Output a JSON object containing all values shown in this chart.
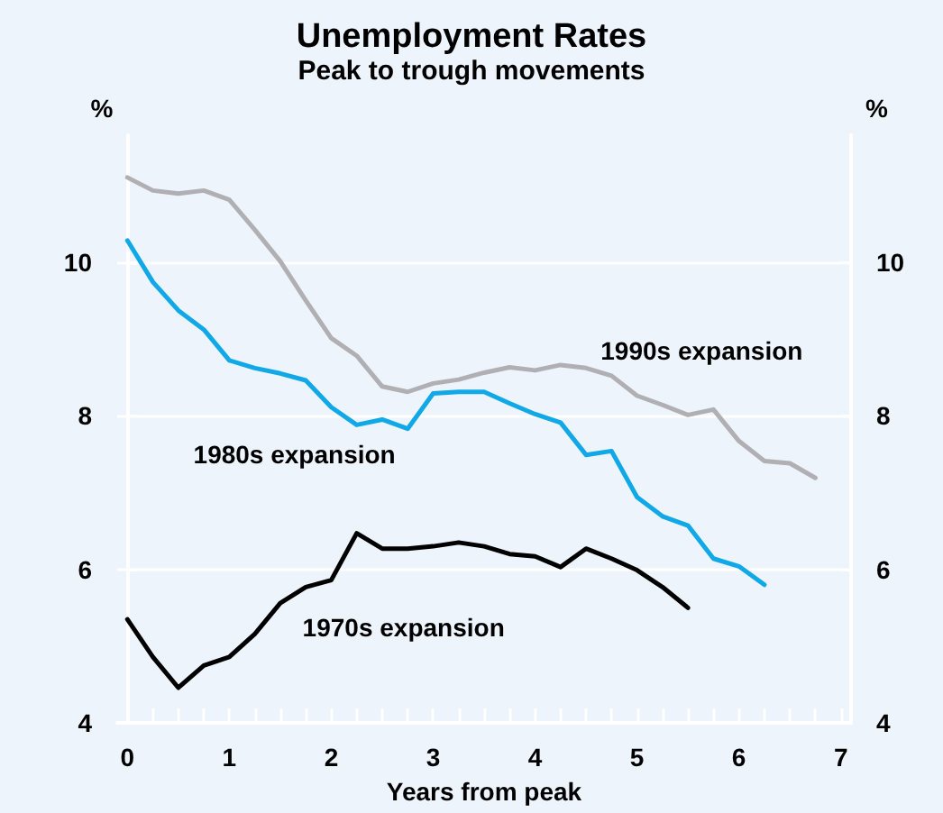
{
  "chart_data": {
    "type": "line",
    "title": "Unemployment Rates",
    "subtitle": "Peak to trough movements",
    "xlabel": "Years from peak",
    "ylabel": "%",
    "y2label": "%",
    "xlim": [
      -0.1,
      7.1
    ],
    "xticks": [
      0,
      1,
      2,
      3,
      4,
      5,
      6,
      7
    ],
    "ylim": [
      4,
      11.65
    ],
    "yticks": [
      4,
      6,
      8,
      10
    ],
    "y2lim": [
      4,
      11.65
    ],
    "y2ticks": [
      4,
      6,
      8,
      10
    ],
    "grid": "y",
    "legend": false,
    "marker": "none",
    "line_style": "solid",
    "x": [
      0,
      0.25,
      0.5,
      0.75,
      1,
      1.25,
      1.5,
      1.75,
      2,
      2.25,
      2.5,
      2.75,
      3,
      3.25,
      3.5,
      3.75,
      4,
      4.25,
      4.5,
      4.75,
      5,
      5.25,
      5.5,
      5.75,
      6,
      6.25,
      6.5,
      6.75
    ],
    "series": [
      {
        "name": "1990s expansion",
        "color": "#b0b0b4",
        "values": [
          11.1,
          10.93,
          10.89,
          10.93,
          10.81,
          10.42,
          10.01,
          9.5,
          9.01,
          8.78,
          8.38,
          8.31,
          8.42,
          8.47,
          8.56,
          8.63,
          8.59,
          8.66,
          8.62,
          8.52,
          8.26,
          8.14,
          8.01,
          8.08,
          7.67,
          7.41,
          7.38,
          7.19
        ]
      },
      {
        "name": "1980s expansion",
        "color": "#10a8e6",
        "values": [
          10.28,
          9.74,
          9.37,
          9.12,
          8.72,
          8.62,
          8.55,
          8.46,
          8.11,
          7.88,
          7.95,
          7.83,
          8.29,
          8.31,
          8.31,
          8.16,
          8.02,
          7.91,
          7.49,
          7.54,
          6.94,
          6.69,
          6.57,
          6.14,
          6.04,
          5.8,
          null,
          null
        ]
      },
      {
        "name": "1970s expansion",
        "color": "#000000",
        "values": [
          5.35,
          4.86,
          4.46,
          4.75,
          4.86,
          5.16,
          5.56,
          5.77,
          5.86,
          6.47,
          6.27,
          6.27,
          6.3,
          6.35,
          6.3,
          6.2,
          6.17,
          6.03,
          6.27,
          6.14,
          5.99,
          5.77,
          5.5,
          null,
          null,
          null,
          null,
          null
        ]
      }
    ]
  }
}
